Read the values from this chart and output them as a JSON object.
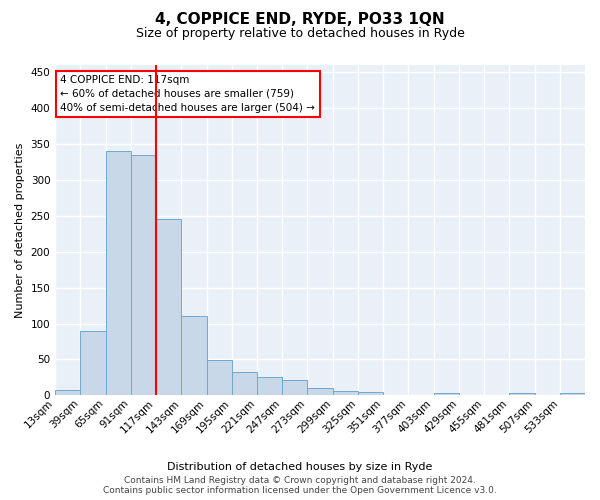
{
  "title": "4, COPPICE END, RYDE, PO33 1QN",
  "subtitle": "Size of property relative to detached houses in Ryde",
  "xlabel": "Distribution of detached houses by size in Ryde",
  "ylabel": "Number of detached properties",
  "bar_color": "#c8d8e8",
  "bar_edge_color": "#6fa8d0",
  "background_color": "#eaf0f8",
  "grid_color": "#ffffff",
  "vline_x": 4,
  "vline_color": "red",
  "annotation_text": "4 COPPICE END: 117sqm\n← 60% of detached houses are smaller (759)\n40% of semi-detached houses are larger (504) →",
  "annotation_box_color": "white",
  "annotation_box_edge_color": "red",
  "footer_text": "Contains HM Land Registry data © Crown copyright and database right 2024.\nContains public sector information licensed under the Open Government Licence v3.0.",
  "bin_labels": [
    "13sqm",
    "39sqm",
    "65sqm",
    "91sqm",
    "117sqm",
    "143sqm",
    "169sqm",
    "195sqm",
    "221sqm",
    "247sqm",
    "273sqm",
    "299sqm",
    "325sqm",
    "351sqm",
    "377sqm",
    "403sqm",
    "429sqm",
    "455sqm",
    "481sqm",
    "507sqm",
    "533sqm"
  ],
  "counts": [
    7,
    89,
    340,
    335,
    246,
    111,
    49,
    32,
    25,
    22,
    10,
    6,
    5,
    0,
    0,
    3,
    0,
    0,
    3,
    0,
    3
  ],
  "ylim": [
    0,
    460
  ],
  "yticks": [
    0,
    50,
    100,
    150,
    200,
    250,
    300,
    350,
    400,
    450
  ],
  "title_fontsize": 11,
  "subtitle_fontsize": 9,
  "ylabel_fontsize": 8,
  "xlabel_fontsize": 8,
  "tick_labelsize": 7.5,
  "footer_fontsize": 6.5
}
